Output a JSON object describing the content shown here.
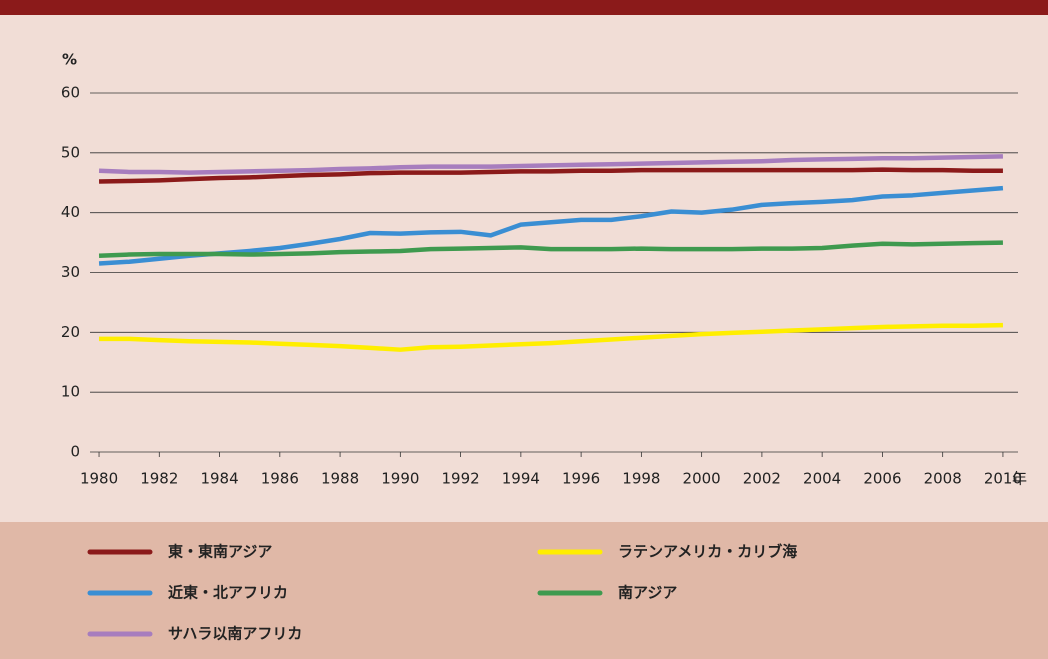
{
  "chart_data": {
    "type": "line",
    "y_label": "%",
    "x_label": "年",
    "x": [
      1980,
      1981,
      1982,
      1983,
      1984,
      1985,
      1986,
      1987,
      1988,
      1989,
      1990,
      1991,
      1992,
      1993,
      1994,
      1995,
      1996,
      1997,
      1998,
      1999,
      2000,
      2001,
      2002,
      2003,
      2004,
      2005,
      2006,
      2007,
      2008,
      2009,
      2010
    ],
    "xlim": [
      1979.7,
      2010.5
    ],
    "xticks": [
      1980,
      1982,
      1984,
      1986,
      1988,
      1990,
      1992,
      1994,
      1996,
      1998,
      2000,
      2002,
      2004,
      2006,
      2008,
      2010
    ],
    "ylim": [
      0,
      60
    ],
    "yticks": [
      0,
      10,
      20,
      30,
      40,
      50,
      60
    ],
    "grid": true,
    "series": [
      {
        "name": "東・東南アジア",
        "color": "#8b1a1a",
        "values": [
          45.2,
          45.3,
          45.4,
          45.6,
          45.8,
          45.9,
          46.1,
          46.3,
          46.4,
          46.6,
          46.7,
          46.7,
          46.7,
          46.8,
          46.9,
          46.9,
          47.0,
          47.0,
          47.1,
          47.1,
          47.1,
          47.1,
          47.1,
          47.1,
          47.1,
          47.1,
          47.2,
          47.1,
          47.1,
          47.0,
          47.0
        ]
      },
      {
        "name": "ラテンアメリカ・カリブ海",
        "color": "#ffee00",
        "values": [
          18.9,
          18.9,
          18.7,
          18.5,
          18.4,
          18.3,
          18.1,
          17.9,
          17.7,
          17.4,
          17.1,
          17.5,
          17.6,
          17.8,
          18.0,
          18.2,
          18.5,
          18.8,
          19.1,
          19.4,
          19.7,
          19.9,
          20.1,
          20.3,
          20.5,
          20.7,
          20.9,
          21.0,
          21.1,
          21.1,
          21.2
        ]
      },
      {
        "name": "近東・北アフリカ",
        "color": "#3a8ed3",
        "values": [
          31.5,
          31.8,
          32.3,
          32.8,
          33.2,
          33.6,
          34.1,
          34.8,
          35.6,
          36.6,
          36.5,
          36.7,
          36.8,
          36.2,
          38.0,
          38.4,
          38.8,
          38.8,
          39.4,
          40.2,
          40.0,
          40.5,
          41.3,
          41.6,
          41.8,
          42.1,
          42.7,
          42.9,
          43.3,
          43.7,
          44.1
        ]
      },
      {
        "name": "南アジア",
        "color": "#3f9a4f",
        "values": [
          32.8,
          33.0,
          33.1,
          33.1,
          33.1,
          33.0,
          33.1,
          33.2,
          33.4,
          33.5,
          33.6,
          33.9,
          34.0,
          34.1,
          34.2,
          33.9,
          33.9,
          33.9,
          34.0,
          33.9,
          33.9,
          33.9,
          34.0,
          34.0,
          34.1,
          34.5,
          34.8,
          34.7,
          34.8,
          34.9,
          35.0
        ]
      },
      {
        "name": "サハラ以南アフリカ",
        "color": "#a77dbe",
        "values": [
          47.0,
          46.8,
          46.8,
          46.7,
          46.8,
          46.9,
          47.0,
          47.1,
          47.3,
          47.4,
          47.6,
          47.7,
          47.7,
          47.7,
          47.8,
          47.9,
          48.0,
          48.1,
          48.2,
          48.3,
          48.4,
          48.5,
          48.6,
          48.8,
          48.9,
          49.0,
          49.1,
          49.1,
          49.2,
          49.3,
          49.4
        ]
      }
    ]
  }
}
